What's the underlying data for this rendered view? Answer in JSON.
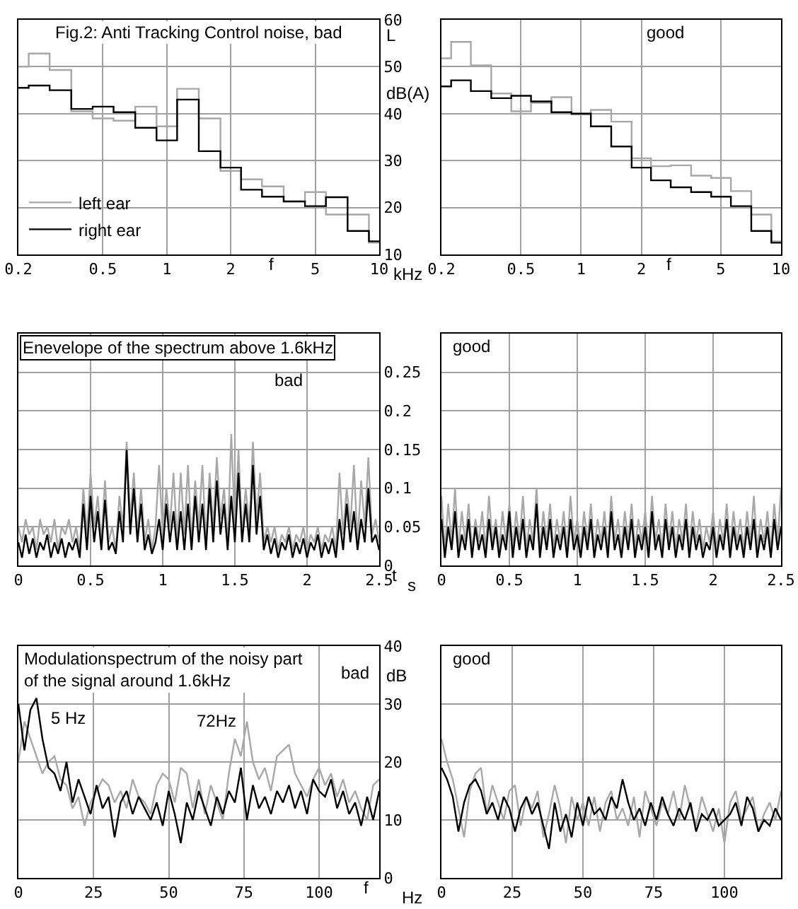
{
  "chart_data": [
    {
      "type": "step",
      "title": "Fig.2: Anti Tracking Control noise, bad",
      "xlabel": "f",
      "ylabel": "L dB(A)",
      "annotations": [
        "kHz"
      ],
      "log": "x",
      "grid": true,
      "legend": "bottom left",
      "x": [
        0.2,
        0.25,
        0.315,
        0.4,
        0.5,
        0.63,
        0.8,
        1,
        1.25,
        1.6,
        2,
        2.5,
        3.15,
        4,
        5,
        6.3,
        8,
        10
      ],
      "series": [
        {
          "name": "left ear",
          "color": "#a8a8a8",
          "values": [
            50,
            52.8,
            49.3,
            40.5,
            39,
            38.5,
            41.5,
            37.3,
            45.3,
            39,
            27.8,
            26,
            24.5,
            21.3,
            23.3,
            18.5,
            18.5,
            12.5
          ]
        },
        {
          "name": "right ear",
          "color": "#000000",
          "values": [
            45.5,
            46,
            45,
            41,
            41.5,
            40.3,
            37,
            34.3,
            43,
            32,
            28.5,
            23.8,
            22.3,
            21.3,
            20.3,
            22.2,
            15,
            12.8
          ]
        }
      ],
      "xlim": [
        0.2,
        10
      ],
      "xticks": [
        0.2,
        0.5,
        1,
        2,
        5,
        10
      ],
      "ylim": [
        10,
        60
      ],
      "yticks": [
        10,
        20,
        30,
        40,
        50,
        60
      ]
    },
    {
      "type": "step",
      "title": "good",
      "xlabel": "f",
      "log": "x",
      "grid": true,
      "tick_labels": "x",
      "x": [
        0.2,
        0.25,
        0.315,
        0.4,
        0.5,
        0.63,
        0.8,
        1,
        1.25,
        1.6,
        2,
        2.5,
        3.15,
        4,
        5,
        6.3,
        8,
        10
      ],
      "series": [
        {
          "color": "#a8a8a8",
          "values": [
            51.8,
            55.3,
            50.3,
            44.3,
            40.5,
            42.3,
            43.5,
            39.8,
            40.8,
            38.3,
            30.5,
            28.8,
            29,
            26.8,
            26.3,
            23.5,
            18.5,
            12.8
          ]
        },
        {
          "color": "#000000",
          "values": [
            45.8,
            47.1,
            44.8,
            43.3,
            43.8,
            42.6,
            40.3,
            40,
            37.3,
            33,
            28.5,
            25.8,
            24.3,
            23.3,
            22.3,
            20.3,
            15,
            12.5
          ]
        }
      ],
      "xlim": [
        0.2,
        10
      ],
      "xticks": [
        0.2,
        0.5,
        1,
        2,
        5,
        10
      ],
      "ylim": [
        10,
        60
      ],
      "yticks": [
        10,
        20,
        30,
        40,
        50,
        60
      ]
    },
    {
      "type": "line",
      "title": "Enevelope of the spectrum above 1.6kHz",
      "subtitle": "bad",
      "xlabel": "t",
      "annotations": [
        "s"
      ],
      "grid": true,
      "x": [
        0,
        0.025,
        0.05,
        0.075,
        0.1,
        0.125,
        0.15,
        0.175,
        0.2,
        0.225,
        0.25,
        0.275,
        0.3,
        0.325,
        0.35,
        0.375,
        0.4,
        0.425,
        0.45,
        0.475,
        0.5,
        0.525,
        0.55,
        0.575,
        0.6,
        0.625,
        0.65,
        0.675,
        0.7,
        0.725,
        0.75,
        0.775,
        0.8,
        0.825,
        0.85,
        0.875,
        0.9,
        0.925,
        0.95,
        0.975,
        1,
        1.025,
        1.05,
        1.075,
        1.1,
        1.125,
        1.15,
        1.175,
        1.2,
        1.225,
        1.25,
        1.275,
        1.3,
        1.325,
        1.35,
        1.375,
        1.4,
        1.425,
        1.45,
        1.475,
        1.5,
        1.525,
        1.55,
        1.575,
        1.6,
        1.625,
        1.65,
        1.675,
        1.7,
        1.725,
        1.75,
        1.775,
        1.8,
        1.825,
        1.85,
        1.875,
        1.9,
        1.925,
        1.95,
        1.975,
        2,
        2.025,
        2.05,
        2.075,
        2.1,
        2.125,
        2.15,
        2.175,
        2.2,
        2.225,
        2.25,
        2.275,
        2.3,
        2.325,
        2.35,
        2.375,
        2.4,
        2.425,
        2.45,
        2.475,
        2.5
      ],
      "series": [
        {
          "color": "#a8a8a8",
          "values": [
            0.05,
            0.03,
            0.06,
            0.04,
            0.05,
            0.02,
            0.06,
            0.04,
            0.05,
            0.03,
            0.06,
            0.02,
            0.05,
            0.04,
            0.06,
            0.03,
            0.05,
            0.02,
            0.1,
            0.04,
            0.12,
            0.05,
            0.09,
            0.03,
            0.11,
            0.03,
            0.05,
            0.02,
            0.09,
            0.05,
            0.16,
            0.06,
            0.12,
            0.04,
            0.1,
            0.03,
            0.06,
            0.02,
            0.05,
            0.13,
            0.04,
            0.1,
            0.05,
            0.12,
            0.03,
            0.12,
            0.04,
            0.13,
            0.03,
            0.11,
            0.05,
            0.13,
            0.03,
            0.12,
            0.05,
            0.14,
            0.06,
            0.1,
            0.03,
            0.17,
            0.05,
            0.15,
            0.04,
            0.1,
            0.05,
            0.16,
            0.06,
            0.12,
            0.03,
            0.05,
            0.03,
            0.05,
            0.02,
            0.04,
            0.03,
            0.05,
            0.02,
            0.04,
            0.03,
            0.05,
            0.02,
            0.04,
            0.03,
            0.05,
            0.02,
            0.04,
            0.03,
            0.05,
            0.02,
            0.12,
            0.04,
            0.1,
            0.05,
            0.13,
            0.03,
            0.11,
            0.05,
            0.14,
            0.04,
            0.06,
            0.03
          ]
        },
        {
          "color": "#000000",
          "values": [
            0.03,
            0.01,
            0.04,
            0.015,
            0.035,
            0.01,
            0.03,
            0.02,
            0.04,
            0.01,
            0.03,
            0.015,
            0.035,
            0.01,
            0.03,
            0.02,
            0.035,
            0.01,
            0.08,
            0.02,
            0.09,
            0.03,
            0.07,
            0.02,
            0.085,
            0.02,
            0.03,
            0.015,
            0.07,
            0.03,
            0.15,
            0.04,
            0.1,
            0.03,
            0.08,
            0.02,
            0.04,
            0.015,
            0.03,
            0.06,
            0.02,
            0.08,
            0.03,
            0.07,
            0.02,
            0.07,
            0.02,
            0.08,
            0.02,
            0.09,
            0.03,
            0.08,
            0.02,
            0.1,
            0.03,
            0.11,
            0.04,
            0.08,
            0.02,
            0.09,
            0.03,
            0.12,
            0.03,
            0.08,
            0.03,
            0.13,
            0.04,
            0.09,
            0.02,
            0.04,
            0.015,
            0.035,
            0.01,
            0.03,
            0.02,
            0.04,
            0.01,
            0.03,
            0.015,
            0.035,
            0.01,
            0.03,
            0.02,
            0.04,
            0.01,
            0.03,
            0.015,
            0.035,
            0.01,
            0.06,
            0.02,
            0.08,
            0.03,
            0.07,
            0.02,
            0.06,
            0.03,
            0.1,
            0.03,
            0.04,
            0.02
          ]
        }
      ],
      "xlim": [
        0,
        2.5
      ],
      "xticks": [
        0,
        0.5,
        1,
        1.5,
        2,
        2.5
      ],
      "ylim": [
        0,
        0.3
      ],
      "yticks": [
        0,
        0.05,
        0.1,
        0.15,
        0.2,
        0.25
      ]
    },
    {
      "type": "line",
      "title": "good",
      "grid": true,
      "tick_labels": "x",
      "x": [
        0,
        0.025,
        0.05,
        0.075,
        0.1,
        0.125,
        0.15,
        0.175,
        0.2,
        0.225,
        0.25,
        0.275,
        0.3,
        0.325,
        0.35,
        0.375,
        0.4,
        0.425,
        0.45,
        0.475,
        0.5,
        0.525,
        0.55,
        0.575,
        0.6,
        0.625,
        0.65,
        0.675,
        0.7,
        0.725,
        0.75,
        0.775,
        0.8,
        0.825,
        0.85,
        0.875,
        0.9,
        0.925,
        0.95,
        0.975,
        1,
        1.025,
        1.05,
        1.075,
        1.1,
        1.125,
        1.15,
        1.175,
        1.2,
        1.225,
        1.25,
        1.275,
        1.3,
        1.325,
        1.35,
        1.375,
        1.4,
        1.425,
        1.45,
        1.475,
        1.5,
        1.525,
        1.55,
        1.575,
        1.6,
        1.625,
        1.65,
        1.675,
        1.7,
        1.725,
        1.75,
        1.775,
        1.8,
        1.825,
        1.85,
        1.875,
        1.9,
        1.925,
        1.95,
        1.975,
        2,
        2.025,
        2.05,
        2.075,
        2.1,
        2.125,
        2.15,
        2.175,
        2.2,
        2.225,
        2.25,
        2.275,
        2.3,
        2.325,
        2.35,
        2.375,
        2.4,
        2.425,
        2.45,
        2.475,
        2.5
      ],
      "series": [
        {
          "color": "#a8a8a8",
          "values": [
            0.09,
            0.02,
            0.08,
            0.03,
            0.1,
            0.02,
            0.07,
            0.03,
            0.08,
            0.02,
            0.06,
            0.03,
            0.07,
            0.02,
            0.09,
            0.03,
            0.06,
            0.02,
            0.07,
            0.03,
            0.08,
            0.02,
            0.07,
            0.03,
            0.09,
            0.02,
            0.06,
            0.03,
            0.1,
            0.02,
            0.07,
            0.03,
            0.08,
            0.02,
            0.06,
            0.03,
            0.07,
            0.02,
            0.09,
            0.03,
            0.06,
            0.02,
            0.07,
            0.03,
            0.08,
            0.02,
            0.06,
            0.03,
            0.07,
            0.02,
            0.09,
            0.03,
            0.06,
            0.02,
            0.07,
            0.03,
            0.08,
            0.02,
            0.06,
            0.03,
            0.07,
            0.02,
            0.09,
            0.03,
            0.06,
            0.02,
            0.08,
            0.03,
            0.07,
            0.02,
            0.06,
            0.03,
            0.08,
            0.02,
            0.07,
            0.03,
            0.06,
            0.02,
            0.05,
            0.03,
            0.07,
            0.02,
            0.06,
            0.03,
            0.08,
            0.02,
            0.07,
            0.03,
            0.06,
            0.02,
            0.07,
            0.03,
            0.09,
            0.02,
            0.06,
            0.03,
            0.07,
            0.02,
            0.08,
            0.03,
            0.1
          ]
        },
        {
          "color": "#000000",
          "values": [
            0.06,
            0.01,
            0.05,
            0.02,
            0.07,
            0.01,
            0.04,
            0.02,
            0.06,
            0.01,
            0.05,
            0.02,
            0.04,
            0.01,
            0.06,
            0.02,
            0.05,
            0.01,
            0.04,
            0.02,
            0.07,
            0.01,
            0.05,
            0.02,
            0.06,
            0.01,
            0.04,
            0.02,
            0.08,
            0.01,
            0.05,
            0.02,
            0.06,
            0.01,
            0.04,
            0.02,
            0.05,
            0.01,
            0.06,
            0.02,
            0.04,
            0.01,
            0.05,
            0.02,
            0.06,
            0.01,
            0.04,
            0.02,
            0.05,
            0.01,
            0.07,
            0.02,
            0.04,
            0.01,
            0.05,
            0.02,
            0.06,
            0.01,
            0.04,
            0.02,
            0.05,
            0.01,
            0.07,
            0.02,
            0.04,
            0.01,
            0.06,
            0.02,
            0.05,
            0.01,
            0.04,
            0.02,
            0.06,
            0.01,
            0.05,
            0.02,
            0.04,
            0.01,
            0.03,
            0.02,
            0.05,
            0.01,
            0.04,
            0.02,
            0.06,
            0.01,
            0.05,
            0.02,
            0.04,
            0.01,
            0.05,
            0.02,
            0.06,
            0.01,
            0.04,
            0.02,
            0.05,
            0.01,
            0.06,
            0.02,
            0.05
          ]
        }
      ],
      "xlim": [
        0,
        2.5
      ],
      "xticks": [
        0,
        0.5,
        1,
        1.5,
        2,
        2.5
      ],
      "ylim": [
        0,
        0.3
      ],
      "yticks": [
        0,
        0.05,
        0.1,
        0.15,
        0.2,
        0.25
      ]
    },
    {
      "type": "line",
      "title": "Modulationspectrum of the noisy part\nof the signal around 1.6kHz",
      "subtitle": "bad",
      "xlabel": "f",
      "ylabel": "dB",
      "grid": true,
      "annotations": [
        "Hz",
        "5 Hz",
        "72Hz"
      ],
      "x": [
        0,
        2,
        4,
        6,
        8,
        10,
        12,
        14,
        16,
        18,
        20,
        22,
        24,
        26,
        28,
        30,
        32,
        34,
        36,
        38,
        40,
        42,
        44,
        46,
        48,
        50,
        52,
        54,
        56,
        58,
        60,
        62,
        64,
        66,
        68,
        70,
        72,
        74,
        76,
        78,
        80,
        82,
        84,
        86,
        88,
        90,
        92,
        94,
        96,
        98,
        100,
        102,
        104,
        106,
        108,
        110,
        112,
        114,
        116,
        118,
        120
      ],
      "series": [
        {
          "color": "#a8a8a8",
          "values": [
            20,
            27,
            24,
            21,
            18,
            20,
            21,
            17,
            16,
            12,
            14,
            9,
            13,
            15,
            17,
            16,
            13,
            15,
            12,
            17,
            14,
            13,
            11,
            16,
            18,
            17,
            13,
            19,
            18,
            12,
            17,
            11,
            16,
            13,
            10,
            18,
            24,
            21,
            27,
            20,
            17,
            19,
            15,
            21,
            22,
            23,
            18,
            16,
            14,
            17,
            19,
            16,
            18,
            14,
            17,
            13,
            15,
            12,
            10,
            16,
            17
          ]
        },
        {
          "color": "#000000",
          "values": [
            30,
            22,
            29,
            31,
            24,
            19,
            18,
            15,
            20,
            13,
            17,
            14,
            11,
            16,
            12,
            14,
            7,
            13,
            15,
            11,
            14,
            12,
            10,
            13,
            9,
            15,
            11,
            6,
            13,
            10,
            15,
            12,
            9,
            14,
            11,
            15,
            13,
            19,
            10,
            16,
            12,
            14,
            11,
            15,
            13,
            16,
            12,
            15,
            11,
            17,
            15,
            14,
            17,
            12,
            15,
            11,
            13,
            9,
            14,
            10,
            15
          ]
        }
      ],
      "xlim": [
        0,
        120
      ],
      "xticks": [
        0,
        25,
        50,
        75,
        100
      ],
      "ylim": [
        0,
        40
      ],
      "yticks": [
        0,
        10,
        20,
        30,
        40
      ]
    },
    {
      "type": "line",
      "title": "good",
      "grid": true,
      "tick_labels": "x",
      "x": [
        0,
        2,
        4,
        6,
        8,
        10,
        12,
        14,
        16,
        18,
        20,
        22,
        24,
        26,
        28,
        30,
        32,
        34,
        36,
        38,
        40,
        42,
        44,
        46,
        48,
        50,
        52,
        54,
        56,
        58,
        60,
        62,
        64,
        66,
        68,
        70,
        72,
        74,
        76,
        78,
        80,
        82,
        84,
        86,
        88,
        90,
        92,
        94,
        96,
        98,
        100,
        102,
        104,
        106,
        108,
        110,
        112,
        114,
        116,
        118,
        120
      ],
      "series": [
        {
          "color": "#a8a8a8",
          "values": [
            24,
            20,
            17,
            12,
            7,
            15,
            18,
            19,
            11,
            16,
            13,
            10,
            15,
            16,
            9,
            14,
            12,
            15,
            7,
            11,
            16,
            12,
            6,
            14,
            10,
            13,
            9,
            14,
            8,
            13,
            15,
            10,
            12,
            9,
            14,
            7,
            15,
            12,
            9,
            13,
            11,
            15,
            10,
            16,
            12,
            9,
            14,
            11,
            8,
            12,
            6,
            13,
            15,
            10,
            12,
            14,
            8,
            11,
            13,
            10,
            15
          ]
        },
        {
          "color": "#000000",
          "values": [
            19,
            17,
            14,
            8,
            13,
            16,
            17,
            15,
            11,
            13,
            10,
            14,
            12,
            8,
            12,
            14,
            11,
            13,
            9,
            5,
            13,
            8,
            11,
            7,
            13,
            9,
            14,
            11,
            12,
            10,
            14,
            12,
            17,
            13,
            10,
            12,
            9,
            13,
            10,
            14,
            11,
            9,
            12,
            10,
            13,
            8,
            11,
            10,
            12,
            9,
            10,
            11,
            13,
            9,
            14,
            12,
            8,
            10,
            9,
            12,
            10
          ]
        }
      ],
      "xlim": [
        0,
        120
      ],
      "xticks": [
        0,
        25,
        50,
        75,
        100
      ],
      "ylim": [
        0,
        40
      ],
      "yticks": [
        0,
        10,
        20,
        30,
        40
      ]
    }
  ]
}
